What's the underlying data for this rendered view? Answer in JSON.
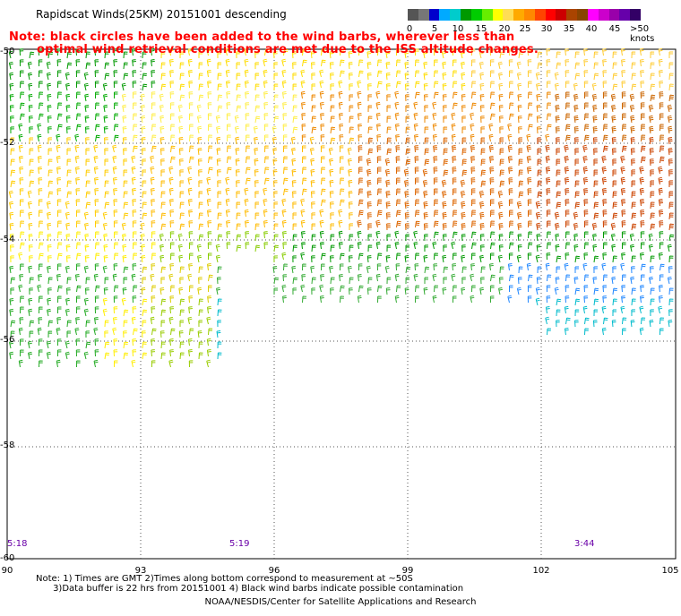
{
  "title": "Rapidscat Winds(25KM) 20151001 descending",
  "note_line1": "Note: black circles have been added to the wind barbs, wherever less than",
  "note_line2": "optimal wind retrieval conditions are met due to the ISS altitude changes.",
  "color_scale": {
    "labels": [
      "0",
      "5",
      "10",
      "15",
      "20",
      "25",
      "30",
      "35",
      "40",
      "45",
      ">50 knots"
    ],
    "colors": [
      "#555555",
      "#777777",
      "#0000cc",
      "#00aaff",
      "#00cccc",
      "#009900",
      "#00cc00",
      "#66ee00",
      "#ffff00",
      "#ffdd55",
      "#ffaa00",
      "#ff8800",
      "#ff4400",
      "#ff0000",
      "#cc0000",
      "#aa4400",
      "#884400",
      "#ff00ff",
      "#cc00cc",
      "#9900aa",
      "#6600aa",
      "#330066"
    ]
  },
  "lat_labels": [
    "-50",
    "-52",
    "-54",
    "-56",
    "-58",
    "-60"
  ],
  "lon_labels": [
    "90",
    "93",
    "96",
    "99",
    "102",
    "105"
  ],
  "time_labels": [
    "5:18",
    "5:19",
    "3:44"
  ],
  "footnote_line1": "Note: 1) Times are GMT 2)Times along bottom correspond to measurement at ~50S",
  "footnote_line2": "      3)Data buffer is 22 hrs from 20151001 4) Black wind barbs indicate possible contamination",
  "credit": "NOAA/NESDIS/Center for Satellite Applications and Research"
}
